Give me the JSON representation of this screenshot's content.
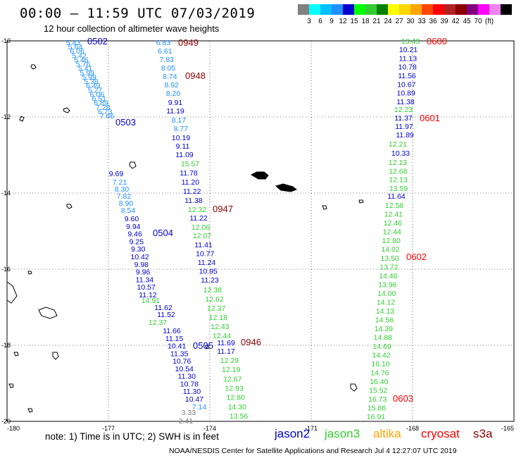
{
  "header": {
    "title": "00:00 – 11:59 UTC 07/03/2019",
    "subtitle": "12 hour collection of altimeter wave heights"
  },
  "colorbar": {
    "unit": "(ft)",
    "colors": [
      "#808080",
      "#00ffff",
      "#00bfff",
      "#1e90ff",
      "#0000cd",
      "#00ff00",
      "#32cd32",
      "#008000",
      "#ffff00",
      "#ffd700",
      "#ffa500",
      "#ff4500",
      "#ff0000",
      "#b22222",
      "#8b0000",
      "#800080",
      "#ff00ff",
      "#ee82ee",
      "#000000"
    ],
    "labels": [
      "3",
      "6",
      "9",
      "12",
      "15",
      "18",
      "21",
      "24",
      "27",
      "30",
      "33",
      "36",
      "39",
      "42",
      "45",
      "70"
    ]
  },
  "axes": {
    "lon_labels": [
      "-180",
      "-177",
      "-174",
      "-171",
      "-168",
      "-165"
    ],
    "lat_labels": [
      "-10",
      "-12",
      "-14",
      "-16",
      "-18",
      "-20"
    ]
  },
  "tracks": [
    {
      "color": "#1e90ff",
      "values": [
        "5.43",
        "5.64",
        "6.06",
        "5.42",
        "5.46",
        "5.76",
        "5.41",
        "5.99",
        "5.99",
        "5.38",
        "6.49",
        "5.27",
        "6.06",
        "6.51",
        "6.89",
        "7.28",
        "6.73",
        "7.66"
      ]
    },
    {
      "color": "#1e90ff",
      "values": [
        "7.21",
        "8.30",
        "7.82",
        "8.90",
        "8.54"
      ]
    },
    {
      "color": "#0000cd",
      "values": [
        "9.69"
      ]
    },
    {
      "color": "#0000cd",
      "values": [
        "9.60",
        "9.94",
        "9.46",
        "9.25",
        "9.30",
        "10.42",
        "9.98",
        "9.96",
        "11.34",
        "10.57",
        "11.12"
      ]
    },
    {
      "color": "#32cd32",
      "values": [
        "14.91"
      ]
    },
    {
      "color": "#0000cd",
      "values": [
        "11.62",
        "11.52"
      ]
    },
    {
      "color": "#32cd32",
      "values": [
        "12.37"
      ]
    },
    {
      "color": "#0000cd",
      "values": [
        "11.66",
        "11.15",
        "10.41",
        "11.35",
        "10.76",
        "10.54",
        "11.30",
        "10.78",
        "11.30",
        "10.47"
      ]
    },
    {
      "color": "#1e90ff",
      "values": [
        "7.14"
      ]
    },
    {
      "color": "#808080",
      "values": [
        "3.33",
        "2.41"
      ]
    },
    {
      "color": "#1e90ff",
      "values": [
        "6.83",
        "6.61",
        "7.83",
        "8.05",
        "8.74",
        "8.92",
        "8.20"
      ]
    },
    {
      "color": "#0000cd",
      "values": [
        "9.91",
        "11.19"
      ]
    },
    {
      "color": "#1e90ff",
      "values": [
        "8.17",
        "8.77"
      ]
    },
    {
      "color": "#0000cd",
      "values": [
        "10.19",
        "9.11",
        "11.09"
      ]
    },
    {
      "color": "#32cd32",
      "values": [
        "15.57"
      ]
    },
    {
      "color": "#0000cd",
      "values": [
        "11.78",
        "11.20",
        "11.22",
        "11.38"
      ]
    },
    {
      "color": "#32cd32",
      "values": [
        "12.32"
      ]
    },
    {
      "color": "#0000cd",
      "values": [
        "11.22"
      ]
    },
    {
      "color": "#32cd32",
      "values": [
        "12.06",
        "12.07"
      ]
    },
    {
      "color": "#0000cd",
      "values": [
        "11.41",
        "10.77",
        "11.24",
        "10.95",
        "11.23"
      ]
    },
    {
      "color": "#32cd32",
      "values": [
        "12.38",
        "12.62",
        "12.37",
        "12.18",
        "12.43",
        "12.44"
      ]
    },
    {
      "color": "#0000cd",
      "values": [
        "11.69",
        "11.17"
      ]
    },
    {
      "color": "#32cd32",
      "values": [
        "12.29",
        "12.19",
        "12.67",
        "12.93",
        "12.80",
        "14.30",
        "13.56"
      ]
    },
    {
      "color": "#32cd32",
      "values": [
        "13.43"
      ]
    },
    {
      "color": "#0000cd",
      "values": [
        "10.21",
        "11.13",
        "10.78",
        "11.56",
        "10.67",
        "10.89",
        "11.38"
      ]
    },
    {
      "color": "#32cd32",
      "values": [
        "12.23"
      ]
    },
    {
      "color": "#0000cd",
      "values": [
        "11.37",
        "11.97",
        "11.89"
      ]
    },
    {
      "color": "#32cd32",
      "values": [
        "12.21"
      ]
    },
    {
      "color": "#0000cd",
      "values": [
        "10.33"
      ]
    },
    {
      "color": "#32cd32",
      "values": [
        "12.13",
        "12.68",
        "12.13",
        "13.59"
      ]
    },
    {
      "color": "#0000cd",
      "values": [
        "11.64"
      ]
    },
    {
      "color": "#32cd32",
      "values": [
        "12.58",
        "12.41",
        "12.46",
        "12.44",
        "12.80",
        "14.02",
        "13.50",
        "13.72",
        "14.46",
        "13.96",
        "14.00",
        "14.12",
        "14.13",
        "14.56",
        "14.39",
        "14.88",
        "14.69",
        "14.42",
        "16.10",
        "14.76",
        "16.40",
        "15.52",
        "16.73",
        "15.86",
        "16.91"
      ]
    }
  ],
  "pass_labels": [
    {
      "text": "0502",
      "color": "#0000cd"
    },
    {
      "text": "0503",
      "color": "#0000cd"
    },
    {
      "text": "0504",
      "color": "#0000cd"
    },
    {
      "text": "0505",
      "color": "#0000cd"
    },
    {
      "text": "0949",
      "color": "#8b0000"
    },
    {
      "text": "0948",
      "color": "#8b0000"
    },
    {
      "text": "0947",
      "color": "#8b0000"
    },
    {
      "text": "0946",
      "color": "#8b0000"
    },
    {
      "text": "0600",
      "color": "#ff0000"
    },
    {
      "text": "0601",
      "color": "#ff0000"
    },
    {
      "text": "0602",
      "color": "#ff0000"
    },
    {
      "text": "0603",
      "color": "#ff0000"
    }
  ],
  "footer": {
    "note": "note: 1) Time is in UTC; 2) SWH is in feet",
    "legend": [
      {
        "text": "jason2",
        "color": "#0000cd"
      },
      {
        "text": "jason3",
        "color": "#32cd32"
      },
      {
        "text": "altika",
        "color": "#ffa500"
      },
      {
        "text": "cryosat",
        "color": "#ff0000"
      },
      {
        "text": "s3a",
        "color": "#8b0000"
      }
    ],
    "credit": "NOAA/NESDIS Center for Satellite Applications and Research   Jul  4 12:27:07 UTC 2019"
  }
}
